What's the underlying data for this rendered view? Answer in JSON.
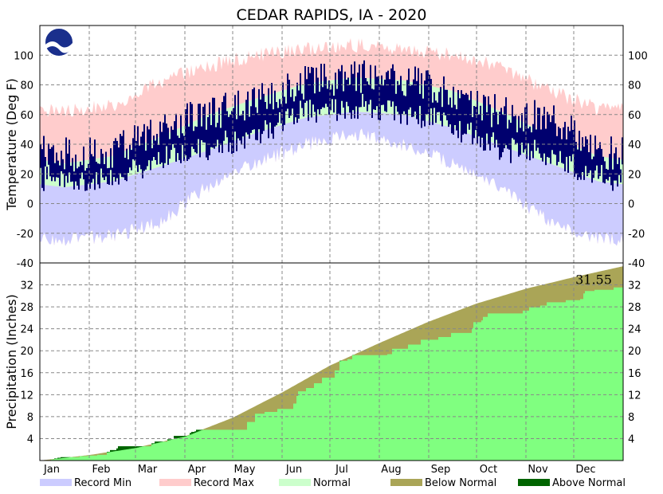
{
  "chart_data": {
    "type": "climate_summary",
    "title": "CEDAR RAPIDS, IA - 2020",
    "year": 2020,
    "months": [
      "Jan",
      "Feb",
      "Mar",
      "Apr",
      "May",
      "Jun",
      "Jul",
      "Aug",
      "Sep",
      "Oct",
      "Nov",
      "Dec"
    ],
    "colors": {
      "record_min": "#ccccff",
      "record_max": "#ffcccc",
      "normal": "#ccffcc",
      "observed": "#00006e",
      "below_normal": "#aaa557",
      "above_normal": "#006400",
      "observed_precip": "#80ff80"
    },
    "temperature": {
      "ylabel": "Temperature (Deg F)",
      "ylim": [
        -40,
        120
      ],
      "yticks": [
        -40,
        -20,
        0,
        20,
        40,
        60,
        80,
        100
      ],
      "grid": true,
      "record_min_monthly": [
        -24,
        -22,
        -12,
        12,
        28,
        40,
        47,
        40,
        27,
        10,
        -12,
        -24
      ],
      "record_max_monthly": [
        62,
        66,
        82,
        93,
        100,
        104,
        107,
        103,
        100,
        92,
        76,
        64
      ],
      "normal_low_monthly": [
        11,
        15,
        25,
        36,
        48,
        58,
        62,
        60,
        51,
        39,
        27,
        15
      ],
      "normal_high_monthly": [
        27,
        32,
        45,
        60,
        71,
        81,
        85,
        83,
        76,
        62,
        46,
        32
      ],
      "observed_high_monthly": [
        33,
        35,
        52,
        60,
        68,
        82,
        86,
        83,
        74,
        60,
        58,
        35
      ],
      "observed_low_monthly": [
        17,
        17,
        31,
        37,
        48,
        62,
        66,
        62,
        52,
        37,
        33,
        18
      ]
    },
    "precipitation": {
      "ylabel": "Precipitation (Inches)",
      "ylim": [
        0,
        36
      ],
      "yticks": [
        4,
        8,
        12,
        16,
        20,
        24,
        28,
        32
      ],
      "grid": true,
      "normal_cumulative_month_end": [
        1.0,
        2.3,
        4.4,
        7.8,
        12.4,
        17.3,
        21.4,
        25.3,
        28.6,
        31.3,
        33.4,
        35.4
      ],
      "observed_cumulative_month_end": [
        0.9,
        2.6,
        4.5,
        5.6,
        9.4,
        15.1,
        19.2,
        22.0,
        25.2,
        27.3,
        29.2,
        31.55
      ],
      "total_label": "31.55"
    },
    "legend": [
      {
        "label": "Record Min",
        "color": "#ccccff"
      },
      {
        "label": "Record Max",
        "color": "#ffcccc"
      },
      {
        "label": "Normal",
        "color": "#ccffcc"
      },
      {
        "label": "Below Normal",
        "color": "#aaa557"
      },
      {
        "label": "Above Normal",
        "color": "#006400"
      }
    ],
    "logo_text": "NOAA"
  }
}
